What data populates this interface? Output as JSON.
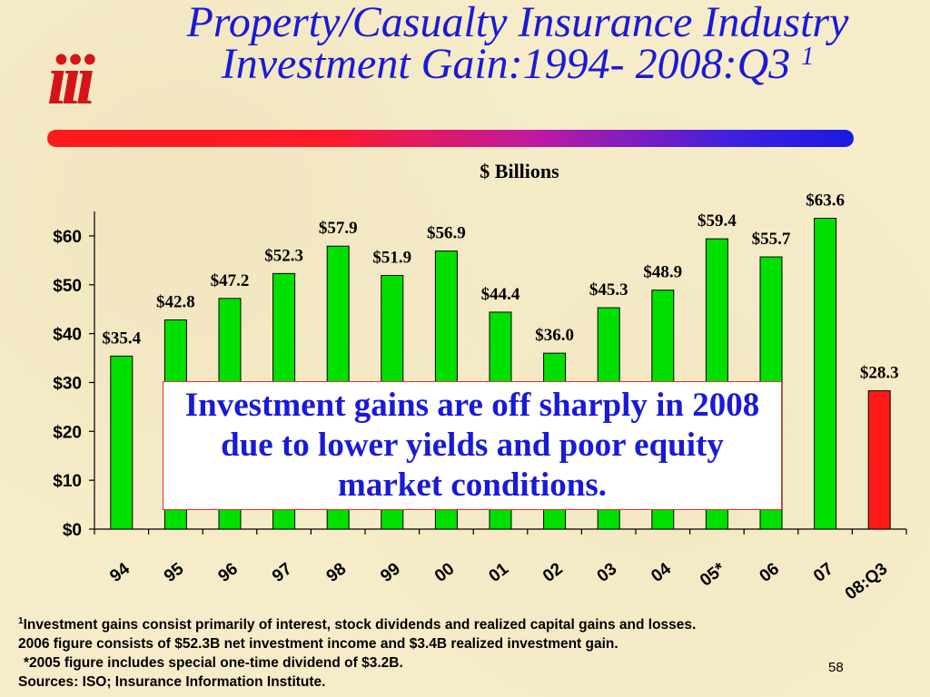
{
  "logo": {
    "text": "iii"
  },
  "title": {
    "line1": "Property/Casualty Insurance Industry",
    "line2": "Investment Gain:1994- 2008:Q3",
    "superscript": "1"
  },
  "callout": {
    "text": "Investment gains are off sharply in 2008 due to lower yields and poor equity market conditions."
  },
  "chart_data": {
    "type": "bar",
    "subtitle": "$ Billions",
    "categories": [
      "94",
      "95",
      "96",
      "97",
      "98",
      "99",
      "00",
      "01",
      "02",
      "03",
      "04",
      "05*",
      "06",
      "07",
      "08:Q3"
    ],
    "values": [
      35.4,
      42.8,
      47.2,
      52.3,
      57.9,
      51.9,
      56.9,
      44.4,
      36.0,
      45.3,
      48.9,
      59.4,
      55.7,
      63.6,
      28.3
    ],
    "value_labels": [
      "$35.4",
      "$42.8",
      "$47.2",
      "$52.3",
      "$57.9",
      "$51.9",
      "$56.9",
      "$44.4",
      "$36.0",
      "$45.3",
      "$48.9",
      "$59.4",
      "$55.7",
      "$63.6",
      "$28.3"
    ],
    "bar_colors": [
      "#00e000",
      "#00e000",
      "#00e000",
      "#00e000",
      "#00e000",
      "#00e000",
      "#00e000",
      "#00e000",
      "#00e000",
      "#00e000",
      "#00e000",
      "#00e000",
      "#00e000",
      "#00e000",
      "#ff1a1a"
    ],
    "y_ticks": [
      0,
      10,
      20,
      30,
      40,
      50,
      60
    ],
    "y_tick_labels": [
      "$0",
      "$10",
      "$20",
      "$30",
      "$40",
      "$50",
      "$60"
    ],
    "ylim": [
      0,
      65
    ],
    "grid": false,
    "legend": "none"
  },
  "footnotes": {
    "line1_sup": "1",
    "line1": "Investment gains consist primarily of interest, stock dividends and realized capital gains and losses.",
    "line2": "2006 figure consists of $52.3B net investment income and $3.4B realized investment gain.",
    "line3": "*2005 figure includes special one-time dividend of $3.2B.",
    "line4": "Sources: ISO; Insurance Information Institute."
  },
  "page_number": "58"
}
